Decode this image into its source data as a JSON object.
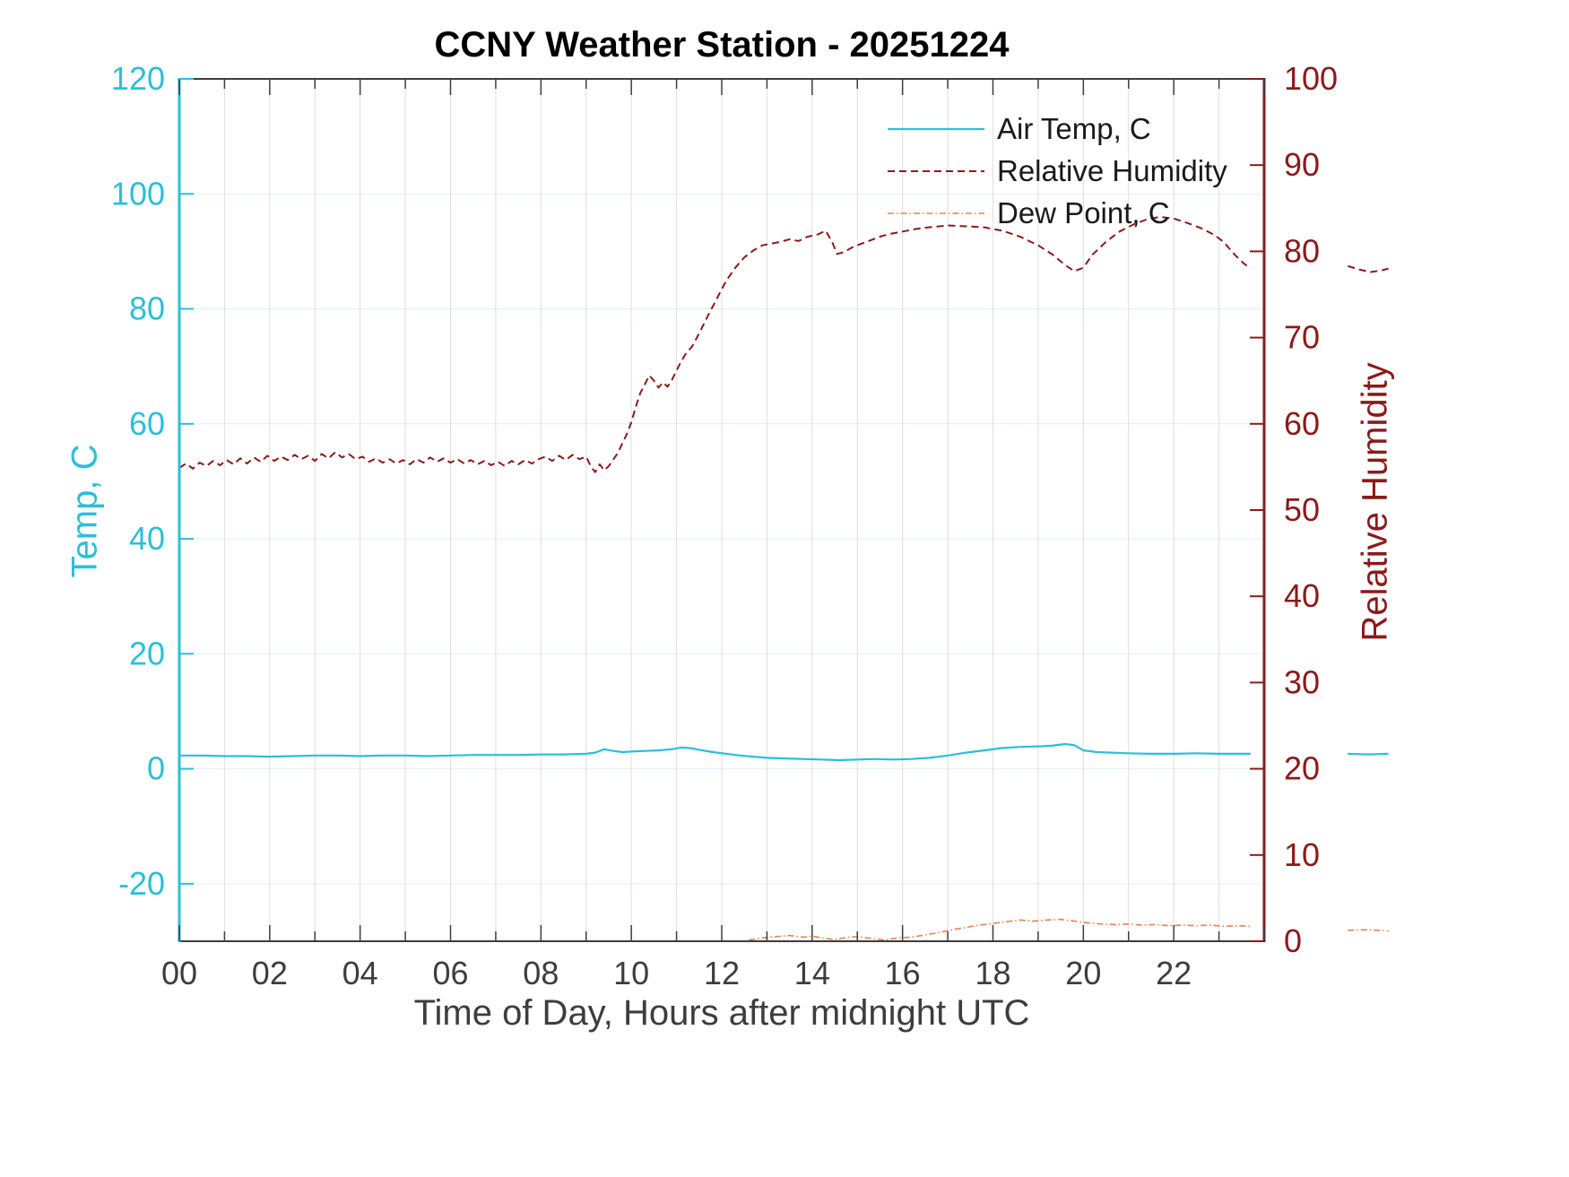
{
  "chart_data": {
    "type": "line",
    "title": "CCNY Weather Station - 20251224",
    "xlabel": "Time of Day, Hours after midnight UTC",
    "ylabel_left": "Temp, C",
    "ylabel_right": "Relative Humidity",
    "xlim": [
      0,
      24
    ],
    "ylim_left": [
      -30,
      120
    ],
    "ylim_right": [
      0,
      100
    ],
    "grid": true,
    "legend_position": "top-right-inside",
    "xticks": {
      "values": [
        0,
        2,
        4,
        6,
        8,
        10,
        12,
        14,
        16,
        18,
        20,
        22
      ],
      "labels": [
        "00",
        "02",
        "04",
        "06",
        "08",
        "10",
        "12",
        "14",
        "16",
        "18",
        "20",
        "22"
      ]
    },
    "yticks_left": [
      -20,
      0,
      20,
      40,
      60,
      80,
      100,
      120
    ],
    "yticks_right": [
      0,
      10,
      20,
      30,
      40,
      50,
      60,
      70,
      80,
      90,
      100
    ],
    "colors": {
      "temp": "#2bbfd9",
      "humidity": "#8b1a1a",
      "dew": "#e8824e",
      "axis_dark": "#3d3d3d",
      "tick_label_x": "#3d3d3d",
      "grid_v": "rgba(80,80,80,0.18)",
      "grid_h": "rgba(43,191,217,0.18)",
      "title": "#000000",
      "legend_text": "#1a1a1a"
    },
    "series": [
      {
        "name": "Air Temp, C",
        "axis": "left",
        "color_key": "temp",
        "style": "solid",
        "width": 2.2,
        "segments": [
          [
            [
              0,
              2.3
            ],
            [
              0.5,
              2.3
            ],
            [
              1,
              2.2
            ],
            [
              1.5,
              2.2
            ],
            [
              2,
              2.1
            ],
            [
              2.5,
              2.2
            ],
            [
              3,
              2.3
            ],
            [
              3.5,
              2.3
            ],
            [
              4,
              2.2
            ],
            [
              4.5,
              2.3
            ],
            [
              5,
              2.3
            ],
            [
              5.5,
              2.2
            ],
            [
              6,
              2.3
            ],
            [
              6.5,
              2.4
            ],
            [
              7,
              2.4
            ],
            [
              7.5,
              2.4
            ],
            [
              8,
              2.5
            ],
            [
              8.5,
              2.5
            ],
            [
              9,
              2.6
            ],
            [
              9.2,
              2.8
            ],
            [
              9.4,
              3.4
            ],
            [
              9.6,
              3.1
            ],
            [
              9.8,
              2.9
            ],
            [
              10,
              3
            ],
            [
              10.3,
              3.1
            ],
            [
              10.6,
              3.2
            ],
            [
              10.9,
              3.4
            ],
            [
              11.1,
              3.7
            ],
            [
              11.3,
              3.6
            ],
            [
              11.5,
              3.3
            ],
            [
              11.8,
              2.9
            ],
            [
              12.1,
              2.6
            ],
            [
              12.4,
              2.3
            ],
            [
              12.7,
              2.1
            ],
            [
              13,
              1.9
            ],
            [
              13.4,
              1.8
            ],
            [
              13.8,
              1.7
            ],
            [
              14.2,
              1.6
            ],
            [
              14.6,
              1.5
            ],
            [
              15,
              1.6
            ],
            [
              15.4,
              1.7
            ],
            [
              15.8,
              1.6
            ],
            [
              16.2,
              1.7
            ],
            [
              16.6,
              1.9
            ],
            [
              17,
              2.3
            ],
            [
              17.4,
              2.8
            ],
            [
              17.8,
              3.2
            ],
            [
              18.2,
              3.6
            ],
            [
              18.6,
              3.8
            ],
            [
              19,
              3.9
            ],
            [
              19.3,
              4
            ],
            [
              19.6,
              4.3
            ],
            [
              19.8,
              4.1
            ],
            [
              20,
              3.2
            ],
            [
              20.3,
              2.9
            ],
            [
              20.6,
              2.8
            ],
            [
              21,
              2.7
            ],
            [
              21.5,
              2.6
            ],
            [
              22,
              2.6
            ],
            [
              22.5,
              2.7
            ],
            [
              23,
              2.6
            ],
            [
              23.4,
              2.6
            ],
            [
              23.7,
              2.6
            ]
          ],
          [
            [
              25.85,
              2.6
            ],
            [
              26.3,
              2.5
            ],
            [
              26.75,
              2.6
            ]
          ]
        ]
      },
      {
        "name": "Relative Humidity",
        "axis": "right",
        "color_key": "humidity",
        "style": "dashed",
        "width": 2,
        "segments": [
          [
            [
              0,
              54.9
            ],
            [
              0.15,
              55.4
            ],
            [
              0.3,
              54.8
            ],
            [
              0.45,
              55.5
            ],
            [
              0.6,
              55.1
            ],
            [
              0.75,
              55.7
            ],
            [
              0.9,
              55.2
            ],
            [
              1.05,
              55.8
            ],
            [
              1.2,
              55.3
            ],
            [
              1.35,
              56
            ],
            [
              1.5,
              55.4
            ],
            [
              1.65,
              56.1
            ],
            [
              1.8,
              55.6
            ],
            [
              1.95,
              56.3
            ],
            [
              2.1,
              55.7
            ],
            [
              2.25,
              56.2
            ],
            [
              2.4,
              55.8
            ],
            [
              2.55,
              56.4
            ],
            [
              2.7,
              55.9
            ],
            [
              2.85,
              56.3
            ],
            [
              3,
              55.7
            ],
            [
              3.15,
              56.5
            ],
            [
              3.3,
              56
            ],
            [
              3.45,
              56.7
            ],
            [
              3.6,
              56.1
            ],
            [
              3.75,
              56.5
            ],
            [
              3.9,
              55.9
            ],
            [
              4.05,
              56.2
            ],
            [
              4.2,
              55.6
            ],
            [
              4.35,
              56
            ],
            [
              4.5,
              55.5
            ],
            [
              4.65,
              55.9
            ],
            [
              4.8,
              55.4
            ],
            [
              4.95,
              55.8
            ],
            [
              5.1,
              55.3
            ],
            [
              5.25,
              55.9
            ],
            [
              5.4,
              55.5
            ],
            [
              5.55,
              56.1
            ],
            [
              5.7,
              55.6
            ],
            [
              5.85,
              56
            ],
            [
              6,
              55.5
            ],
            [
              6.15,
              55.9
            ],
            [
              6.3,
              55.4
            ],
            [
              6.45,
              55.8
            ],
            [
              6.6,
              55.3
            ],
            [
              6.75,
              55.7
            ],
            [
              6.9,
              55.2
            ],
            [
              7.05,
              55.6
            ],
            [
              7.2,
              55.1
            ],
            [
              7.35,
              55.7
            ],
            [
              7.5,
              55.3
            ],
            [
              7.65,
              55.8
            ],
            [
              7.8,
              55.4
            ],
            [
              7.95,
              55.9
            ],
            [
              8.1,
              56.2
            ],
            [
              8.25,
              55.7
            ],
            [
              8.4,
              56.3
            ],
            [
              8.55,
              55.8
            ],
            [
              8.7,
              56.4
            ],
            [
              8.85,
              55.9
            ],
            [
              9,
              56.2
            ],
            [
              9.1,
              55.1
            ],
            [
              9.2,
              54.4
            ],
            [
              9.3,
              55.3
            ],
            [
              9.4,
              54.6
            ],
            [
              9.5,
              55.1
            ],
            [
              9.7,
              56.6
            ],
            [
              9.9,
              58.8
            ],
            [
              10,
              60.2
            ],
            [
              10.1,
              62
            ],
            [
              10.2,
              63.6
            ],
            [
              10.3,
              64.6
            ],
            [
              10.4,
              65.6
            ],
            [
              10.5,
              65
            ],
            [
              10.6,
              64.2
            ],
            [
              10.7,
              64.8
            ],
            [
              10.8,
              64.3
            ],
            [
              10.9,
              65.1
            ],
            [
              11,
              66.2
            ],
            [
              11.1,
              67.2
            ],
            [
              11.2,
              68.1
            ],
            [
              11.35,
              69
            ],
            [
              11.5,
              70.5
            ],
            [
              11.7,
              72.6
            ],
            [
              11.9,
              74.6
            ],
            [
              12.1,
              76.6
            ],
            [
              12.3,
              78.1
            ],
            [
              12.5,
              79.3
            ],
            [
              12.7,
              80.1
            ],
            [
              12.9,
              80.7
            ],
            [
              13.1,
              80.9
            ],
            [
              13.3,
              81.1
            ],
            [
              13.5,
              81.4
            ],
            [
              13.7,
              81.2
            ],
            [
              13.9,
              81.7
            ],
            [
              14.1,
              81.9
            ],
            [
              14.3,
              82.4
            ],
            [
              14.45,
              81
            ],
            [
              14.55,
              79.7
            ],
            [
              14.7,
              79.9
            ],
            [
              14.9,
              80.5
            ],
            [
              15.1,
              80.9
            ],
            [
              15.3,
              81.3
            ],
            [
              15.5,
              81.7
            ],
            [
              15.7,
              82
            ],
            [
              16,
              82.3
            ],
            [
              16.3,
              82.6
            ],
            [
              16.6,
              82.8
            ],
            [
              17,
              83
            ],
            [
              17.4,
              82.9
            ],
            [
              17.8,
              82.8
            ],
            [
              18.2,
              82.4
            ],
            [
              18.6,
              81.7
            ],
            [
              19,
              80.7
            ],
            [
              19.3,
              79.7
            ],
            [
              19.6,
              78.4
            ],
            [
              19.8,
              77.7
            ],
            [
              20,
              78.1
            ],
            [
              20.2,
              79.6
            ],
            [
              20.5,
              81.1
            ],
            [
              20.8,
              82.3
            ],
            [
              21.1,
              83.1
            ],
            [
              21.4,
              83.7
            ],
            [
              21.7,
              84
            ],
            [
              22,
              83.8
            ],
            [
              22.3,
              83.3
            ],
            [
              22.6,
              82.7
            ],
            [
              22.9,
              81.9
            ],
            [
              23.1,
              81.1
            ],
            [
              23.35,
              79.6
            ],
            [
              23.55,
              78.6
            ],
            [
              23.7,
              78
            ]
          ],
          [
            [
              25.85,
              78.3
            ],
            [
              26.1,
              77.9
            ],
            [
              26.35,
              77.6
            ],
            [
              26.6,
              77.8
            ],
            [
              26.75,
              78
            ]
          ]
        ]
      },
      {
        "name": "Dew Point, C",
        "axis": "left",
        "color_key": "dew",
        "style": "dashdot",
        "width": 1.6,
        "segments": [
          [
            [
              12.6,
              -29.8
            ],
            [
              12.9,
              -29.4
            ],
            [
              13.2,
              -29.2
            ],
            [
              13.5,
              -29
            ],
            [
              13.8,
              -29.3
            ],
            [
              14,
              -29.1
            ],
            [
              14.2,
              -29.4
            ],
            [
              14.5,
              -29.7
            ],
            [
              14.8,
              -29.3
            ],
            [
              15,
              -29.2
            ],
            [
              15.3,
              -29.5
            ],
            [
              15.6,
              -29.8
            ],
            [
              15.9,
              -29.4
            ],
            [
              16.2,
              -29.3
            ],
            [
              16.5,
              -28.9
            ],
            [
              16.8,
              -28.5
            ],
            [
              17.1,
              -28
            ],
            [
              17.4,
              -27.6
            ],
            [
              17.7,
              -27.2
            ],
            [
              18,
              -26.9
            ],
            [
              18.3,
              -26.6
            ],
            [
              18.6,
              -26.3
            ],
            [
              18.9,
              -26.5
            ],
            [
              19.2,
              -26.3
            ],
            [
              19.5,
              -26.2
            ],
            [
              19.8,
              -26.5
            ],
            [
              20.1,
              -26.8
            ],
            [
              20.4,
              -27
            ],
            [
              20.7,
              -27.1
            ],
            [
              21,
              -27
            ],
            [
              21.3,
              -27.2
            ],
            [
              21.6,
              -27.1
            ],
            [
              21.9,
              -27.3
            ],
            [
              22.2,
              -27.2
            ],
            [
              22.5,
              -27.3
            ],
            [
              22.8,
              -27.2
            ],
            [
              23.1,
              -27.4
            ],
            [
              23.4,
              -27.3
            ],
            [
              23.7,
              -27.4
            ]
          ],
          [
            [
              25.85,
              -28.1
            ],
            [
              26.3,
              -28
            ],
            [
              26.75,
              -28.2
            ]
          ]
        ]
      }
    ]
  }
}
